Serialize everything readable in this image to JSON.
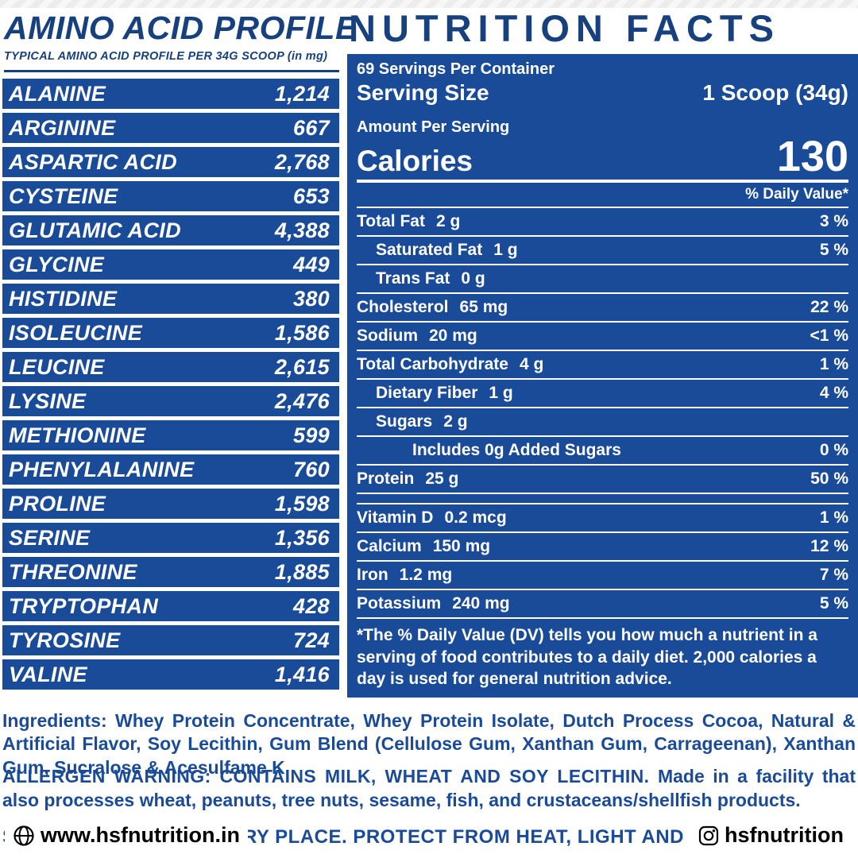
{
  "colors": {
    "brand_blue": "#1a4b99",
    "title_blue": "#16407e",
    "text_black": "#000000"
  },
  "amino_panel": {
    "title": "AMINO ACID PROFILE",
    "subtitle": "TYPICAL AMINO ACID PROFILE PER 34G SCOOP (in mg)",
    "rows": [
      {
        "name": "ALANINE",
        "value": "1,214"
      },
      {
        "name": "ARGININE",
        "value": "667"
      },
      {
        "name": "ASPARTIC ACID",
        "value": "2,768"
      },
      {
        "name": "CYSTEINE",
        "value": "653"
      },
      {
        "name": "GLUTAMIC ACID",
        "value": "4,388"
      },
      {
        "name": "GLYCINE",
        "value": "449"
      },
      {
        "name": "HISTIDINE",
        "value": "380"
      },
      {
        "name": "ISOLEUCINE",
        "value": "1,586"
      },
      {
        "name": "LEUCINE",
        "value": "2,615"
      },
      {
        "name": "LYSINE",
        "value": "2,476"
      },
      {
        "name": "METHIONINE",
        "value": "599"
      },
      {
        "name": "PHENYLALANINE",
        "value": "760"
      },
      {
        "name": "PROLINE",
        "value": "1,598"
      },
      {
        "name": "SERINE",
        "value": "1,356"
      },
      {
        "name": "THREONINE",
        "value": "1,885"
      },
      {
        "name": "TRYPTOPHAN",
        "value": "428"
      },
      {
        "name": "TYROSINE",
        "value": "724"
      },
      {
        "name": "VALINE",
        "value": "1,416"
      }
    ]
  },
  "nutrition_panel": {
    "title": "NUTRITION FACTS",
    "servings": "69 Servings Per Container",
    "serving_size_label": "Serving Size",
    "serving_size_value": "1 Scoop (34g)",
    "amount_per_serving": "Amount Per Serving",
    "calories_label": "Calories",
    "calories_value": "130",
    "daily_value_header": "% Daily Value*",
    "rows": [
      {
        "label": "Total Fat",
        "amount": "2 g",
        "dv": "3 %",
        "indent": 0
      },
      {
        "label": "Saturated Fat",
        "amount": "1 g",
        "dv": "5 %",
        "indent": 1
      },
      {
        "label": "Trans Fat",
        "amount": "0 g",
        "dv": "",
        "indent": 1
      },
      {
        "label": "Cholesterol",
        "amount": "65 mg",
        "dv": "22 %",
        "indent": 0
      },
      {
        "label": "Sodium",
        "amount": "20 mg",
        "dv": "<1 %",
        "indent": 0
      },
      {
        "label": "Total Carbohydrate",
        "amount": "4 g",
        "dv": "1 %",
        "indent": 0
      },
      {
        "label": "Dietary Fiber",
        "amount": "1 g",
        "dv": "4 %",
        "indent": 1
      },
      {
        "label": "Sugars",
        "amount": "2 g",
        "dv": "",
        "indent": 1
      },
      {
        "label": "Includes 0g Added Sugars",
        "amount": "",
        "dv": "0 %",
        "indent": 2
      },
      {
        "label": "Protein",
        "amount": "25 g",
        "dv": "50 %",
        "indent": 0,
        "thick_sep_after": true
      },
      {
        "label": "Vitamin D",
        "amount": "0.2 mcg",
        "dv": "1 %",
        "indent": 0
      },
      {
        "label": "Calcium",
        "amount": "150 mg",
        "dv": "12 %",
        "indent": 0
      },
      {
        "label": "Iron",
        "amount": "1.2 mg",
        "dv": "7 %",
        "indent": 0
      },
      {
        "label": "Potassium",
        "amount": "240 mg",
        "dv": "5 %",
        "indent": 0
      }
    ],
    "footnote": "*The % Daily Value (DV) tells you how much a nutrient in a serving of food contributes to a daily diet. 2,000 calories a day is used for general nutrition advice."
  },
  "bottom": {
    "ingredients": "Ingredients: Whey Protein Concentrate, Whey Protein Isolate, Dutch Process Cocoa, Natural & Artificial Flavor, Soy Lecithin, Gum Blend (Cellulose Gum, Xanthan Gum, Carrageenan), Xanthan Gum, Sucralose & Acesulfame K",
    "allergen_strong": "ALLERGEN WARNING: CONTAINS MILK, WHEAT AND SOY LECITHIN.",
    "allergen_rest": " Made in a facility that also processes wheat, peanuts, tree nuts, sesame, fish, and crustaceans/shellfish products.",
    "storage": "STORE IN A COOL AND DRY PLACE. PROTECT FROM HEAT, LIGHT AND MOISTURE."
  },
  "footer": {
    "website": "www.hsfnutrition.in",
    "instagram": "hsfnutrition"
  }
}
